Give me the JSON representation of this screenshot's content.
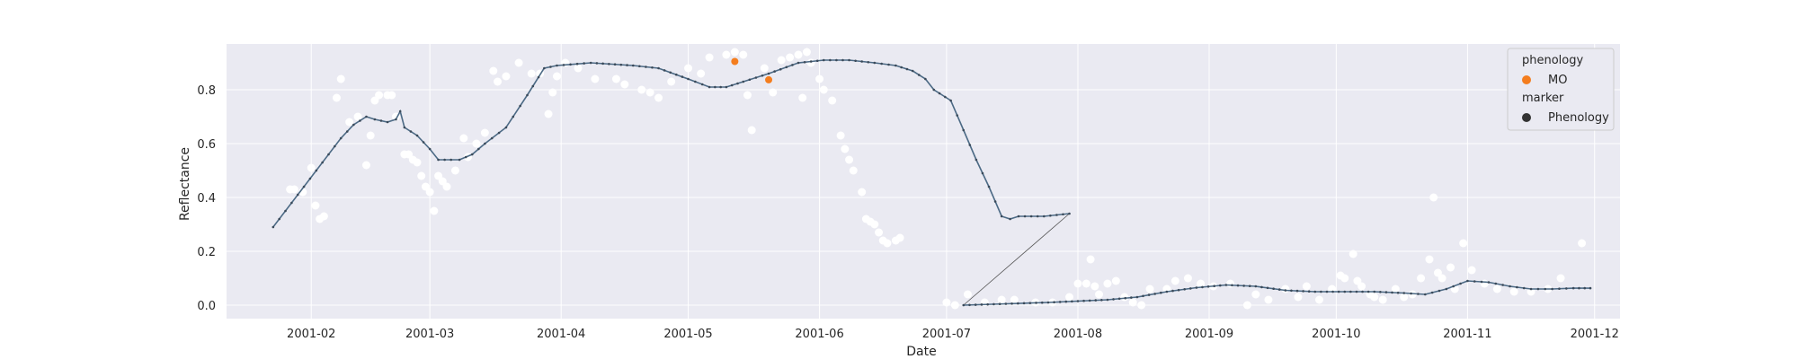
{
  "chart_data": {
    "type": "scatter",
    "xlabel": "Date",
    "ylabel": "Reflectance",
    "x_ticks": [
      "2001-02",
      "2001-03",
      "2001-04",
      "2001-05",
      "2001-06",
      "2001-07",
      "2001-08",
      "2001-09",
      "2001-10",
      "2001-11",
      "2001-12"
    ],
    "y_ticks": [
      "0.0",
      "0.2",
      "0.4",
      "0.6",
      "0.8"
    ],
    "xlim": [
      "2001-01-12",
      "2001-12-07"
    ],
    "ylim": [
      -0.05,
      0.97
    ],
    "grid": true,
    "legend_placement": "top-right",
    "legend": {
      "title1": "phenology",
      "entry1": "MO",
      "title2": "marker",
      "entry2": "Phenology"
    },
    "colors": {
      "background": "#eaeaf2",
      "raw_points": "#ffffff",
      "fit_line": "#4c6a85",
      "connector": "#555555",
      "phenology_mo": "#f47d1e",
      "phenology_marker": "#333333"
    },
    "series": [
      {
        "name": "",
        "kind": "raw_scatter",
        "points": [
          [
            "2001-01-27",
            0.43
          ],
          [
            "2001-01-28",
            0.43
          ],
          [
            "2001-01-30",
            0.42
          ],
          [
            "2001-02-01",
            0.51
          ],
          [
            "2001-02-02",
            0.37
          ],
          [
            "2001-02-03",
            0.32
          ],
          [
            "2001-02-04",
            0.33
          ],
          [
            "2001-02-07",
            0.77
          ],
          [
            "2001-02-08",
            0.84
          ],
          [
            "2001-02-10",
            0.68
          ],
          [
            "2001-02-12",
            0.7
          ],
          [
            "2001-02-14",
            0.52
          ],
          [
            "2001-02-15",
            0.63
          ],
          [
            "2001-02-16",
            0.76
          ],
          [
            "2001-02-17",
            0.78
          ],
          [
            "2001-02-19",
            0.78
          ],
          [
            "2001-02-20",
            0.78
          ],
          [
            "2001-02-21",
            0.7
          ],
          [
            "2001-02-23",
            0.56
          ],
          [
            "2001-02-24",
            0.56
          ],
          [
            "2001-02-25",
            0.54
          ],
          [
            "2001-02-26",
            0.53
          ],
          [
            "2001-02-27",
            0.48
          ],
          [
            "2001-02-28",
            0.44
          ],
          [
            "2001-03-01",
            0.42
          ],
          [
            "2001-03-02",
            0.35
          ],
          [
            "2001-03-03",
            0.48
          ],
          [
            "2001-03-04",
            0.46
          ],
          [
            "2001-03-05",
            0.44
          ],
          [
            "2001-03-07",
            0.5
          ],
          [
            "2001-03-09",
            0.62
          ],
          [
            "2001-03-10",
            0.55
          ],
          [
            "2001-03-12",
            0.6
          ],
          [
            "2001-03-14",
            0.64
          ],
          [
            "2001-03-16",
            0.87
          ],
          [
            "2001-03-17",
            0.83
          ],
          [
            "2001-03-19",
            0.85
          ],
          [
            "2001-03-22",
            0.9
          ],
          [
            "2001-03-25",
            0.86
          ],
          [
            "2001-03-27",
            0.86
          ],
          [
            "2001-03-29",
            0.71
          ],
          [
            "2001-03-30",
            0.79
          ],
          [
            "2001-03-31",
            0.85
          ],
          [
            "2001-04-02",
            0.9
          ],
          [
            "2001-04-05",
            0.88
          ],
          [
            "2001-04-09",
            0.84
          ],
          [
            "2001-04-14",
            0.84
          ],
          [
            "2001-04-16",
            0.82
          ],
          [
            "2001-04-20",
            0.8
          ],
          [
            "2001-04-22",
            0.79
          ],
          [
            "2001-04-24",
            0.77
          ],
          [
            "2001-04-27",
            0.83
          ],
          [
            "2001-05-01",
            0.88
          ],
          [
            "2001-05-04",
            0.86
          ],
          [
            "2001-05-06",
            0.92
          ],
          [
            "2001-05-10",
            0.93
          ],
          [
            "2001-05-12",
            0.94
          ],
          [
            "2001-05-14",
            0.93
          ],
          [
            "2001-05-15",
            0.78
          ],
          [
            "2001-05-16",
            0.65
          ],
          [
            "2001-05-19",
            0.88
          ],
          [
            "2001-05-21",
            0.79
          ],
          [
            "2001-05-23",
            0.91
          ],
          [
            "2001-05-25",
            0.92
          ],
          [
            "2001-05-27",
            0.93
          ],
          [
            "2001-05-28",
            0.77
          ],
          [
            "2001-05-29",
            0.94
          ],
          [
            "2001-05-30",
            0.9
          ],
          [
            "2001-06-01",
            0.84
          ],
          [
            "2001-06-02",
            0.8
          ],
          [
            "2001-06-04",
            0.76
          ],
          [
            "2001-06-06",
            0.63
          ],
          [
            "2001-06-07",
            0.58
          ],
          [
            "2001-06-08",
            0.54
          ],
          [
            "2001-06-09",
            0.5
          ],
          [
            "2001-06-11",
            0.42
          ],
          [
            "2001-06-12",
            0.32
          ],
          [
            "2001-06-13",
            0.31
          ],
          [
            "2001-06-14",
            0.3
          ],
          [
            "2001-06-15",
            0.27
          ],
          [
            "2001-06-16",
            0.24
          ],
          [
            "2001-06-17",
            0.23
          ],
          [
            "2001-06-19",
            0.24
          ],
          [
            "2001-06-20",
            0.25
          ],
          [
            "2001-07-01",
            0.01
          ],
          [
            "2001-07-03",
            0.0
          ],
          [
            "2001-07-06",
            0.04
          ],
          [
            "2001-07-10",
            0.01
          ],
          [
            "2001-07-14",
            0.02
          ],
          [
            "2001-07-17",
            0.02
          ],
          [
            "2001-07-22",
            0.01
          ],
          [
            "2001-07-26",
            0.01
          ],
          [
            "2001-07-30",
            0.03
          ],
          [
            "2001-08-01",
            0.08
          ],
          [
            "2001-08-03",
            0.08
          ],
          [
            "2001-08-04",
            0.17
          ],
          [
            "2001-08-05",
            0.07
          ],
          [
            "2001-08-06",
            0.04
          ],
          [
            "2001-08-08",
            0.08
          ],
          [
            "2001-08-10",
            0.09
          ],
          [
            "2001-08-12",
            0.03
          ],
          [
            "2001-08-14",
            0.01
          ],
          [
            "2001-08-16",
            0.0
          ],
          [
            "2001-08-18",
            0.06
          ],
          [
            "2001-08-22",
            0.06
          ],
          [
            "2001-08-24",
            0.09
          ],
          [
            "2001-08-27",
            0.1
          ],
          [
            "2001-08-30",
            0.08
          ],
          [
            "2001-09-02",
            0.07
          ],
          [
            "2001-09-06",
            0.08
          ],
          [
            "2001-09-10",
            0.0
          ],
          [
            "2001-09-12",
            0.04
          ],
          [
            "2001-09-15",
            0.02
          ],
          [
            "2001-09-19",
            0.06
          ],
          [
            "2001-09-22",
            0.03
          ],
          [
            "2001-09-24",
            0.07
          ],
          [
            "2001-09-27",
            0.02
          ],
          [
            "2001-09-30",
            0.06
          ],
          [
            "2001-10-02",
            0.11
          ],
          [
            "2001-10-03",
            0.1
          ],
          [
            "2001-10-05",
            0.19
          ],
          [
            "2001-10-06",
            0.09
          ],
          [
            "2001-10-07",
            0.07
          ],
          [
            "2001-10-09",
            0.04
          ],
          [
            "2001-10-10",
            0.03
          ],
          [
            "2001-10-12",
            0.02
          ],
          [
            "2001-10-15",
            0.06
          ],
          [
            "2001-10-17",
            0.03
          ],
          [
            "2001-10-19",
            0.04
          ],
          [
            "2001-10-21",
            0.1
          ],
          [
            "2001-10-23",
            0.17
          ],
          [
            "2001-10-24",
            0.4
          ],
          [
            "2001-10-25",
            0.12
          ],
          [
            "2001-10-26",
            0.1
          ],
          [
            "2001-10-28",
            0.14
          ],
          [
            "2001-10-29",
            0.06
          ],
          [
            "2001-10-31",
            0.23
          ],
          [
            "2001-11-02",
            0.13
          ],
          [
            "2001-11-05",
            0.08
          ],
          [
            "2001-11-08",
            0.06
          ],
          [
            "2001-11-12",
            0.05
          ],
          [
            "2001-11-16",
            0.05
          ],
          [
            "2001-11-20",
            0.06
          ],
          [
            "2001-11-23",
            0.1
          ],
          [
            "2001-11-28",
            0.23
          ]
        ]
      },
      {
        "name": "",
        "kind": "fit_line",
        "points": [
          [
            "2001-01-23",
            0.29
          ],
          [
            "2001-02-08",
            0.62
          ],
          [
            "2001-02-11",
            0.67
          ],
          [
            "2001-02-14",
            0.7
          ],
          [
            "2001-02-16",
            0.69
          ],
          [
            "2001-02-19",
            0.68
          ],
          [
            "2001-02-21",
            0.69
          ],
          [
            "2001-02-22",
            0.72
          ],
          [
            "2001-02-23",
            0.66
          ],
          [
            "2001-02-26",
            0.63
          ],
          [
            "2001-03-01",
            0.58
          ],
          [
            "2001-03-03",
            0.54
          ],
          [
            "2001-03-06",
            0.54
          ],
          [
            "2001-03-08",
            0.54
          ],
          [
            "2001-03-11",
            0.56
          ],
          [
            "2001-03-14",
            0.6
          ],
          [
            "2001-03-19",
            0.66
          ],
          [
            "2001-03-24",
            0.78
          ],
          [
            "2001-03-28",
            0.88
          ],
          [
            "2001-03-31",
            0.89
          ],
          [
            "2001-04-08",
            0.9
          ],
          [
            "2001-04-18",
            0.89
          ],
          [
            "2001-04-24",
            0.88
          ],
          [
            "2001-05-01",
            0.84
          ],
          [
            "2001-05-06",
            0.81
          ],
          [
            "2001-05-10",
            0.81
          ],
          [
            "2001-05-14",
            0.83
          ],
          [
            "2001-05-20",
            0.86
          ],
          [
            "2001-05-27",
            0.9
          ],
          [
            "2001-06-02",
            0.91
          ],
          [
            "2001-06-08",
            0.91
          ],
          [
            "2001-06-14",
            0.9
          ],
          [
            "2001-06-19",
            0.89
          ],
          [
            "2001-06-23",
            0.87
          ],
          [
            "2001-06-26",
            0.84
          ],
          [
            "2001-06-28",
            0.8
          ],
          [
            "2001-07-02",
            0.76
          ],
          [
            "2001-07-05",
            0.65
          ],
          [
            "2001-07-08",
            0.54
          ],
          [
            "2001-07-11",
            0.44
          ],
          [
            "2001-07-14",
            0.33
          ],
          [
            "2001-07-16",
            0.32
          ],
          [
            "2001-07-18",
            0.33
          ],
          [
            "2001-07-24",
            0.33
          ],
          [
            "2001-07-30",
            0.34
          ]
        ]
      },
      {
        "name": "",
        "kind": "fit_line_late",
        "points": [
          [
            "2001-07-05",
            0.0
          ],
          [
            "2001-07-15",
            0.005
          ],
          [
            "2001-07-25",
            0.01
          ],
          [
            "2001-08-01",
            0.015
          ],
          [
            "2001-08-08",
            0.02
          ],
          [
            "2001-08-15",
            0.03
          ],
          [
            "2001-08-22",
            0.05
          ],
          [
            "2001-08-29",
            0.065
          ],
          [
            "2001-09-05",
            0.075
          ],
          [
            "2001-09-12",
            0.07
          ],
          [
            "2001-09-19",
            0.055
          ],
          [
            "2001-09-26",
            0.05
          ],
          [
            "2001-10-03",
            0.05
          ],
          [
            "2001-10-10",
            0.05
          ],
          [
            "2001-10-17",
            0.045
          ],
          [
            "2001-10-22",
            0.04
          ],
          [
            "2001-10-27",
            0.06
          ],
          [
            "2001-11-01",
            0.09
          ],
          [
            "2001-11-06",
            0.085
          ],
          [
            "2001-11-11",
            0.07
          ],
          [
            "2001-11-16",
            0.06
          ],
          [
            "2001-11-21",
            0.06
          ],
          [
            "2001-11-26",
            0.063
          ],
          [
            "2001-11-30",
            0.063
          ]
        ]
      },
      {
        "name": "MO",
        "kind": "phenology",
        "points": [
          [
            "2001-05-12",
            0.905
          ],
          [
            "2001-05-20",
            0.837
          ]
        ]
      }
    ]
  }
}
